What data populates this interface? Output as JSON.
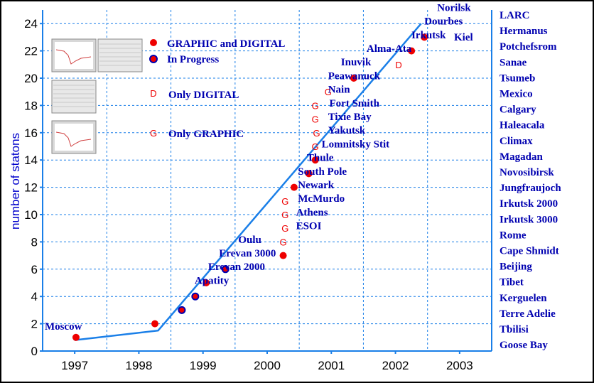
{
  "chart_data": {
    "type": "scatter",
    "ylabel": "number of statons",
    "xlabel": "",
    "xlim": [
      1996.5,
      2003.5
    ],
    "ylim": [
      0,
      25
    ],
    "x_ticks": [
      "1997",
      "1998",
      "1999",
      "2000",
      "2001",
      "2002",
      "2003"
    ],
    "y_ticks": [
      "0",
      "2",
      "4",
      "6",
      "8",
      "10",
      "12",
      "14",
      "16",
      "18",
      "20",
      "22",
      "24"
    ],
    "grid": true,
    "trend_line": {
      "x": [
        1997.0,
        1998.3,
        2002.4
      ],
      "y": [
        0.8,
        1.5,
        24.0
      ]
    },
    "legend": [
      {
        "marker": "red-dot",
        "label": "GRAPHIC and  DIGITAL"
      },
      {
        "marker": "blue-dot",
        "label": "In Progress"
      },
      {
        "marker": "D",
        "label": "Only  DIGITAL"
      },
      {
        "marker": "G",
        "label": "Only  GRAPHIC"
      }
    ],
    "points": [
      {
        "x": 1997.02,
        "y": 1,
        "marker": "red-dot",
        "label": "Moscow"
      },
      {
        "x": 1998.25,
        "y": 2,
        "marker": "red-dot"
      },
      {
        "x": 1998.67,
        "y": 3,
        "marker": "blue-dot",
        "label": "Apatity"
      },
      {
        "x": 1998.88,
        "y": 4,
        "marker": "blue-dot",
        "label": "Erevan 2000"
      },
      {
        "x": 1999.05,
        "y": 5,
        "marker": "red-dot",
        "label": "Erevan 3000"
      },
      {
        "x": 1999.35,
        "y": 6,
        "marker": "blue-dot",
        "label": "Oulu"
      },
      {
        "x": 2000.25,
        "y": 7,
        "marker": "red-dot",
        "label": "ESOI"
      },
      {
        "x": 2000.25,
        "y": 8,
        "marker": "G",
        "label": "Athens"
      },
      {
        "x": 2000.28,
        "y": 9,
        "marker": "G",
        "label": "McMurdo"
      },
      {
        "x": 2000.28,
        "y": 10,
        "marker": "G",
        "label": "Newark"
      },
      {
        "x": 2000.28,
        "y": 11,
        "marker": "G",
        "label": "South Pole"
      },
      {
        "x": 2000.42,
        "y": 12,
        "marker": "red-dot",
        "label": "Thule"
      },
      {
        "x": 2000.65,
        "y": 13,
        "marker": "red-dot",
        "label": "Lomnitsky Stit"
      },
      {
        "x": 2000.75,
        "y": 14,
        "marker": "red-dot",
        "label": "Yakutsk"
      },
      {
        "x": 2000.75,
        "y": 15,
        "marker": "G",
        "label": "Tixie Bay"
      },
      {
        "x": 2000.77,
        "y": 16,
        "marker": "G",
        "label": "Fort Smith"
      },
      {
        "x": 2000.75,
        "y": 17,
        "marker": "G",
        "label": "Nain"
      },
      {
        "x": 2000.75,
        "y": 18,
        "marker": "G",
        "label": "Peawanuck"
      },
      {
        "x": 2000.95,
        "y": 19,
        "marker": "G",
        "label": "Inuvik"
      },
      {
        "x": 2001.35,
        "y": 20,
        "marker": "red-dot",
        "label": "Alma-Ata"
      },
      {
        "x": 2002.05,
        "y": 21,
        "marker": "D",
        "label": "Irkutsk"
      },
      {
        "x": 2002.25,
        "y": 22,
        "marker": "red-dot",
        "label": "Dourbes"
      },
      {
        "x": 2002.45,
        "y": 23,
        "marker": "red-dot",
        "label": "Norilsk"
      }
    ],
    "extra_labels": [
      "Kiel"
    ],
    "right_column": [
      "LARC",
      "Hermanus",
      "Potchefsrom",
      "Sanae",
      "Tsumeb",
      "Mexico",
      "Calgary",
      "Haleacala",
      "Climax",
      "Magadan",
      "Novosibirsk",
      "Jungfraujoch",
      "Irkutsk 2000",
      "Irkutsk 3000",
      "Rome",
      "Cape Shmidt",
      "Beijing",
      "Tibet",
      "Kerguelen",
      "Terre Adelie",
      "Tbilisi",
      "Goose Bay"
    ]
  },
  "colors": {
    "line": "#1a7fe8",
    "red": "#ee0000",
    "blue": "#0000b0",
    "grid": "#1a7fe8"
  }
}
